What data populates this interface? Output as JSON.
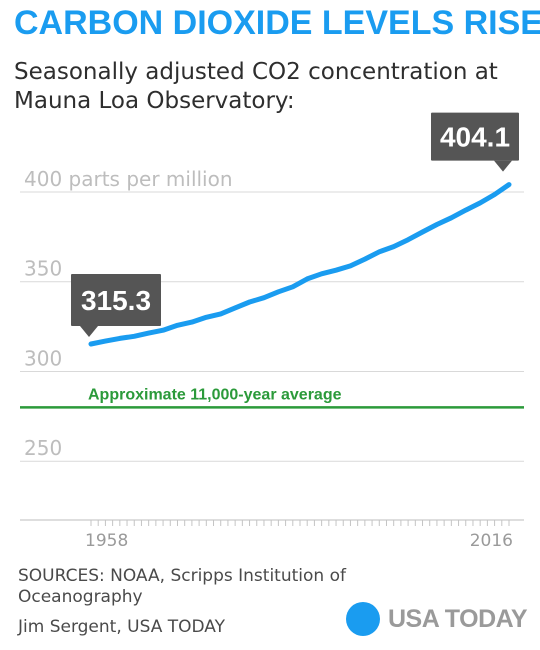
{
  "title": "CARBON DIOXIDE LEVELS RISE",
  "subtitle": "Seasonally adjusted CO2 concentration at Mauna Loa Observatory:",
  "sources": "SOURCES: NOAA, Scripps Institution of Oceanography",
  "credit": "Jim Sergent, USA TODAY",
  "brand": "USA TODAY",
  "colors": {
    "accent": "#1a9cf0",
    "reference": "#2b9a3a",
    "callout": "#555555",
    "grid": "#d9d9d9",
    "axis_text": "#bdbdbd"
  },
  "chart_data": {
    "type": "line",
    "xlim": [
      1958,
      2016
    ],
    "ylim": [
      215,
      410
    ],
    "x_tick_labels": [
      "1958",
      "2016"
    ],
    "y_ticks": [
      {
        "value": 400,
        "label": "400 parts per million"
      },
      {
        "value": 350,
        "label": "350"
      },
      {
        "value": 300,
        "label": "300"
      },
      {
        "value": 250,
        "label": "250"
      }
    ],
    "reference_line": {
      "value": 280,
      "label": "Approximate 11,000-year average"
    },
    "callouts": [
      {
        "x": 1958,
        "y": 315.3,
        "label": "315.3"
      },
      {
        "x": 2016,
        "y": 404.1,
        "label": "404.1"
      }
    ],
    "series": [
      {
        "x": [
          1958,
          1960,
          1962,
          1964,
          1966,
          1968,
          1970,
          1972,
          1974,
          1976,
          1978,
          1980,
          1982,
          1984,
          1986,
          1988,
          1990,
          1992,
          1994,
          1996,
          1998,
          2000,
          2002,
          2004,
          2006,
          2008,
          2010,
          2012,
          2014,
          2016
        ],
        "y": [
          315.3,
          316.9,
          318.4,
          319.6,
          321.4,
          323.0,
          325.7,
          327.5,
          330.2,
          332.1,
          335.4,
          338.7,
          341.1,
          344.4,
          347.2,
          351.6,
          354.4,
          356.4,
          358.8,
          362.6,
          366.7,
          369.6,
          373.4,
          377.7,
          381.9,
          385.6,
          389.9,
          393.9,
          398.6,
          404.1
        ]
      }
    ]
  }
}
